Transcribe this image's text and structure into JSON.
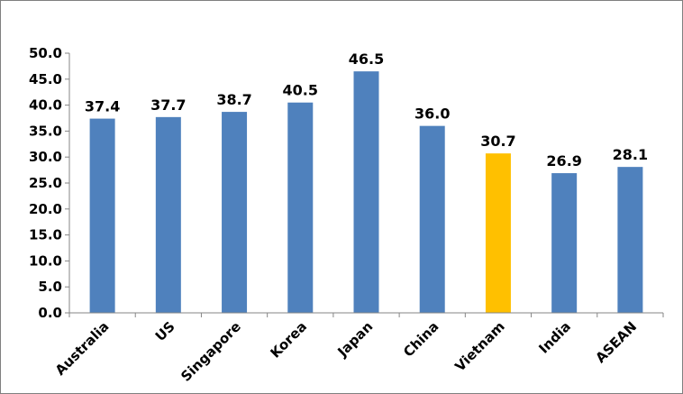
{
  "chart_data": {
    "type": "bar",
    "categories": [
      "Australia",
      "US",
      "Singapore",
      "Korea",
      "Japan",
      "China",
      "Vietnam",
      "India",
      "ASEAN"
    ],
    "values": [
      37.4,
      37.7,
      38.7,
      40.5,
      46.5,
      36.0,
      30.7,
      26.9,
      28.1
    ],
    "data_labels": [
      "37.4",
      "37.7",
      "38.7",
      "40.5",
      "46.5",
      "36.0",
      "30.7",
      "26.9",
      "28.1"
    ],
    "ylim": [
      0,
      50
    ],
    "yticks": [
      "0.0",
      "5.0",
      "10.0",
      "15.0",
      "20.0",
      "25.0",
      "30.0",
      "35.0",
      "40.0",
      "45.0",
      "50.0"
    ],
    "ytick_values": [
      0,
      5,
      10,
      15,
      20,
      25,
      30,
      35,
      40,
      45,
      50
    ],
    "grid": false,
    "legend": "none",
    "colors": {
      "default_bar": "#4f81bd",
      "highlight_bar": "#ffc000",
      "axis": "#868686"
    },
    "highlight_category": "Vietnam"
  }
}
